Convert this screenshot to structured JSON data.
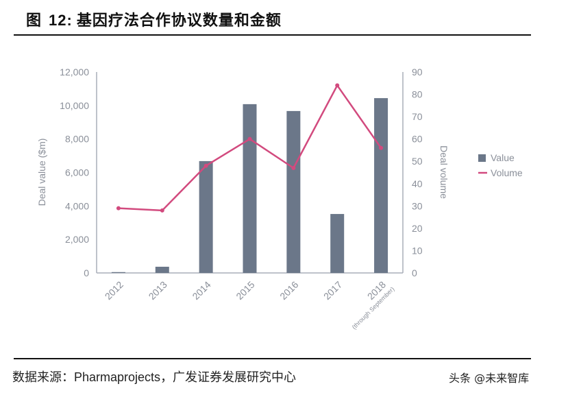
{
  "header": {
    "figure_label": "图",
    "figure_number": "12:",
    "title": "基因疗法合作协议数量和金额"
  },
  "footer": {
    "source_prefix": "数据来源：",
    "source_en": "Pharmaprojects",
    "source_suffix": "，广发证券发展研究中心",
    "watermark": "头条 @未来智库"
  },
  "colors": {
    "bar": "#6b7789",
    "line": "#d24a7e",
    "axis": "#a9adb8",
    "tick_text": "#8a8f99"
  },
  "chart_data": {
    "type": "bar+line",
    "title": "基因疗法合作协议数量和金额",
    "categories": [
      "2012",
      "2013",
      "2014",
      "2015",
      "2016",
      "2017",
      "2018"
    ],
    "category_note": "(through September)",
    "series": [
      {
        "name": "Value",
        "type": "bar",
        "axis": "left",
        "values": [
          50,
          370,
          6680,
          10080,
          9670,
          3520,
          10440
        ]
      },
      {
        "name": "Volume",
        "type": "line",
        "axis": "right",
        "values": [
          29,
          28,
          48,
          60,
          47,
          84,
          56
        ]
      }
    ],
    "ylabel": "Deal value ($m)",
    "y2label": "Deal volume",
    "ylim": [
      0,
      12000
    ],
    "y2lim": [
      0,
      90
    ],
    "yticks": [
      "0",
      "2,000",
      "4,000",
      "6,000",
      "8,000",
      "10,000",
      "12,000"
    ],
    "y2ticks": [
      "0",
      "10",
      "20",
      "30",
      "40",
      "50",
      "60",
      "70",
      "80",
      "90"
    ],
    "legend": [
      "Value",
      "Volume"
    ],
    "legend_position": "right",
    "grid": false
  }
}
